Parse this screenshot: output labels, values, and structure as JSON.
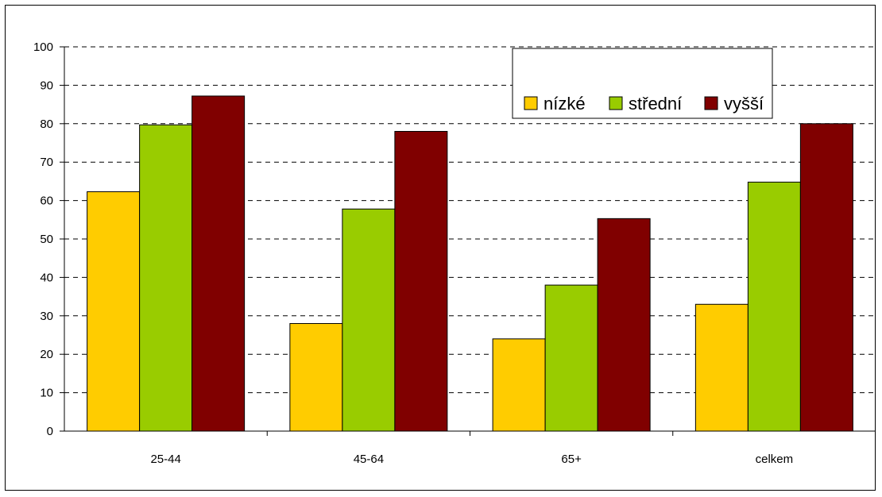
{
  "chart_data": {
    "type": "bar",
    "categories": [
      "25-44",
      "45-64",
      "65+",
      "celkem"
    ],
    "series": [
      {
        "name": "nízké",
        "values": [
          62.3,
          28.0,
          24.0,
          33.0
        ],
        "color": "#FFCC00"
      },
      {
        "name": "střední",
        "values": [
          79.7,
          57.8,
          38.0,
          64.8
        ],
        "color": "#99CC00"
      },
      {
        "name": "vyšší",
        "values": [
          87.2,
          78.0,
          55.3,
          80.0
        ],
        "color": "#800000"
      }
    ],
    "title": "",
    "xlabel": "",
    "ylabel": "",
    "ylim": [
      0,
      100
    ],
    "yticks": [
      0,
      10,
      20,
      30,
      40,
      50,
      60,
      70,
      80,
      90,
      100
    ],
    "grid": "horizontal dashed",
    "legend_position": "top-right"
  }
}
